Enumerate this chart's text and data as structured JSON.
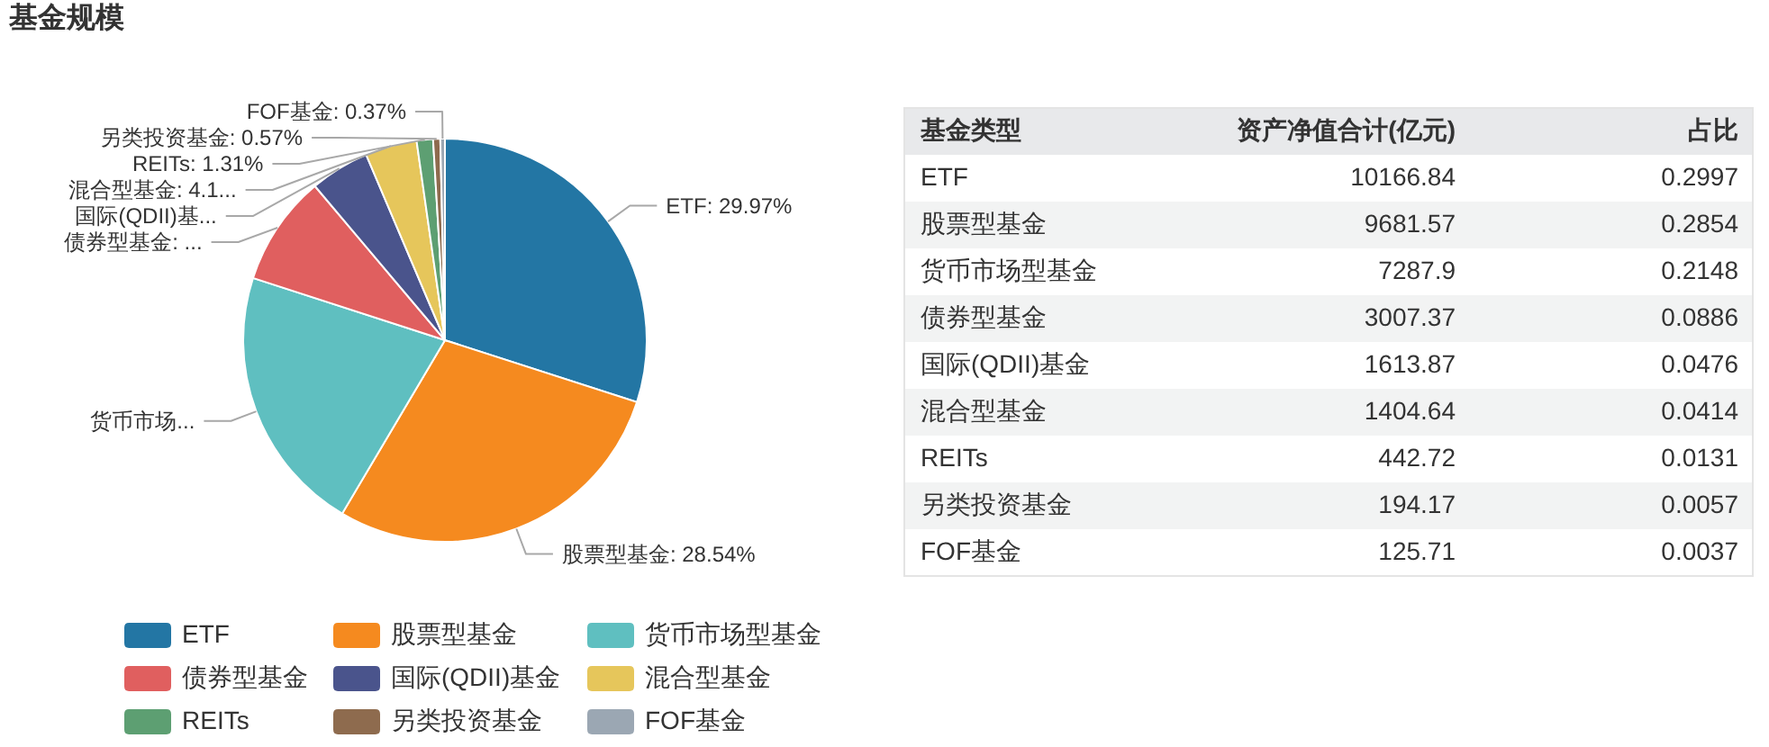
{
  "chart_data": [
    {
      "type": "pie",
      "title": "基金规模",
      "categories": [
        "ETF",
        "股票型基金",
        "货币市场型基金",
        "债券型基金",
        "国际(QDII)基金",
        "混合型基金",
        "REITs",
        "另类投资基金",
        "FOF基金"
      ],
      "values": [
        29.97,
        28.54,
        21.48,
        8.86,
        4.76,
        4.14,
        1.31,
        0.57,
        0.37
      ],
      "colors": [
        "#2376a4",
        "#f58a1f",
        "#5fbfc0",
        "#e05f5f",
        "#4a548c",
        "#e6c65b",
        "#5d9f72",
        "#8e6b4e",
        "#9ba7b3"
      ],
      "value_labels": [
        "ETF: 29.97%",
        "股票型基金: 28.54%",
        "货币市场...",
        "债券型基金: ...",
        "国际(QDII)基...",
        "混合型基金: 4.1...",
        "REITs: 1.31%",
        "另类投资基金: 0.57%",
        "FOF基金: 0.37%"
      ],
      "legend": "bottom"
    },
    {
      "type": "other",
      "ylabel": "基金类型",
      "categories": [
        "ETF",
        "股票型基金",
        "货币市场型基金",
        "债券型基金",
        "国际(QDII)基金",
        "混合型基金",
        "REITs",
        "另类投资基金",
        "FOF基金"
      ],
      "series": [
        {
          "name": "资产净值合计(亿元)",
          "values": [
            10166.84,
            9681.57,
            7287.9,
            3007.37,
            1613.87,
            1404.64,
            442.72,
            194.17,
            125.71
          ]
        },
        {
          "name": "占比",
          "values": [
            0.2997,
            0.2854,
            0.2148,
            0.0886,
            0.0476,
            0.0414,
            0.0131,
            0.0057,
            0.0037
          ]
        }
      ],
      "data_labels": true
    }
  ]
}
